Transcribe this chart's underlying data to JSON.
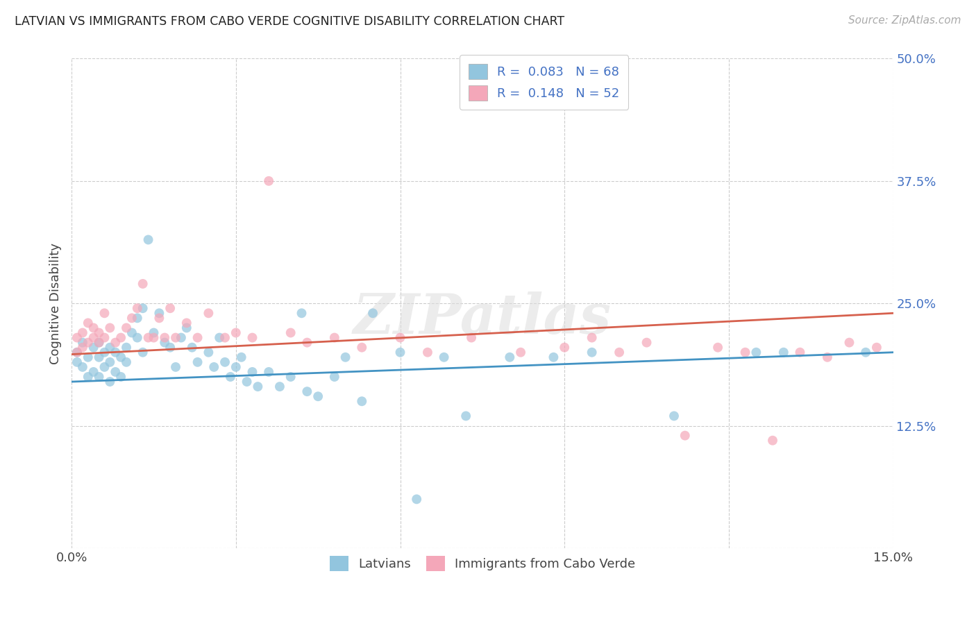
{
  "title": "LATVIAN VS IMMIGRANTS FROM CABO VERDE COGNITIVE DISABILITY CORRELATION CHART",
  "source": "Source: ZipAtlas.com",
  "ylabel": "Cognitive Disability",
  "xlim": [
    0.0,
    0.15
  ],
  "ylim": [
    0.0,
    0.5
  ],
  "xtick_vals": [
    0.0,
    0.03,
    0.06,
    0.09,
    0.12,
    0.15
  ],
  "ytick_vals": [
    0.0,
    0.125,
    0.25,
    0.375,
    0.5
  ],
  "xticklabels": [
    "0.0%",
    "",
    "",
    "",
    "",
    "15.0%"
  ],
  "yticklabels": [
    "",
    "12.5%",
    "25.0%",
    "37.5%",
    "50.0%"
  ],
  "legend_labels": [
    "Latvians",
    "Immigrants from Cabo Verde"
  ],
  "legend_r_blue": "0.083",
  "legend_n_blue": "68",
  "legend_r_pink": "0.148",
  "legend_n_pink": "52",
  "color_blue": "#92c5de",
  "color_pink": "#f4a7b9",
  "color_line_blue": "#4393c3",
  "color_line_pink": "#d6604d",
  "watermark": "ZIPatlas",
  "latvians_x": [
    0.001,
    0.001,
    0.002,
    0.002,
    0.003,
    0.003,
    0.004,
    0.004,
    0.005,
    0.005,
    0.005,
    0.006,
    0.006,
    0.007,
    0.007,
    0.007,
    0.008,
    0.008,
    0.009,
    0.009,
    0.01,
    0.01,
    0.011,
    0.012,
    0.012,
    0.013,
    0.013,
    0.014,
    0.015,
    0.016,
    0.017,
    0.018,
    0.019,
    0.02,
    0.021,
    0.022,
    0.023,
    0.025,
    0.026,
    0.027,
    0.028,
    0.029,
    0.03,
    0.031,
    0.032,
    0.033,
    0.034,
    0.036,
    0.038,
    0.04,
    0.042,
    0.043,
    0.045,
    0.048,
    0.05,
    0.053,
    0.055,
    0.06,
    0.063,
    0.068,
    0.072,
    0.08,
    0.088,
    0.095,
    0.11,
    0.125,
    0.13,
    0.145
  ],
  "latvians_y": [
    0.19,
    0.2,
    0.185,
    0.21,
    0.175,
    0.195,
    0.18,
    0.205,
    0.175,
    0.195,
    0.21,
    0.185,
    0.2,
    0.17,
    0.19,
    0.205,
    0.18,
    0.2,
    0.175,
    0.195,
    0.19,
    0.205,
    0.22,
    0.215,
    0.235,
    0.2,
    0.245,
    0.315,
    0.22,
    0.24,
    0.21,
    0.205,
    0.185,
    0.215,
    0.225,
    0.205,
    0.19,
    0.2,
    0.185,
    0.215,
    0.19,
    0.175,
    0.185,
    0.195,
    0.17,
    0.18,
    0.165,
    0.18,
    0.165,
    0.175,
    0.24,
    0.16,
    0.155,
    0.175,
    0.195,
    0.15,
    0.24,
    0.2,
    0.05,
    0.195,
    0.135,
    0.195,
    0.195,
    0.2,
    0.135,
    0.2,
    0.2,
    0.2
  ],
  "caboverde_x": [
    0.001,
    0.001,
    0.002,
    0.002,
    0.003,
    0.003,
    0.004,
    0.004,
    0.005,
    0.005,
    0.006,
    0.006,
    0.007,
    0.008,
    0.009,
    0.01,
    0.011,
    0.012,
    0.013,
    0.014,
    0.015,
    0.016,
    0.017,
    0.018,
    0.019,
    0.021,
    0.023,
    0.025,
    0.028,
    0.03,
    0.033,
    0.036,
    0.04,
    0.043,
    0.048,
    0.053,
    0.06,
    0.065,
    0.073,
    0.082,
    0.09,
    0.095,
    0.1,
    0.105,
    0.112,
    0.118,
    0.123,
    0.128,
    0.133,
    0.138,
    0.142,
    0.147
  ],
  "caboverde_y": [
    0.2,
    0.215,
    0.205,
    0.22,
    0.21,
    0.23,
    0.215,
    0.225,
    0.21,
    0.22,
    0.24,
    0.215,
    0.225,
    0.21,
    0.215,
    0.225,
    0.235,
    0.245,
    0.27,
    0.215,
    0.215,
    0.235,
    0.215,
    0.245,
    0.215,
    0.23,
    0.215,
    0.24,
    0.215,
    0.22,
    0.215,
    0.375,
    0.22,
    0.21,
    0.215,
    0.205,
    0.215,
    0.2,
    0.215,
    0.2,
    0.205,
    0.215,
    0.2,
    0.21,
    0.115,
    0.205,
    0.2,
    0.11,
    0.2,
    0.195,
    0.21,
    0.205
  ]
}
